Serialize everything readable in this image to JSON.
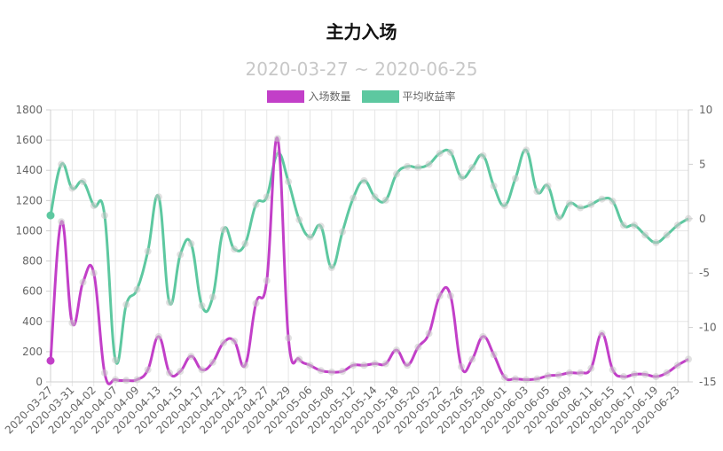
{
  "chart_data": {
    "type": "line",
    "title": "主力入场",
    "subtitle": "2020-03-27 ~ 2020-06-25",
    "x_tick_labels": [
      "2020-03-27",
      "2020-03-31",
      "2020-04-02",
      "2020-04-07",
      "2020-04-09",
      "2020-04-13",
      "2020-04-15",
      "2020-04-17",
      "2020-04-21",
      "2020-04-23",
      "2020-04-27",
      "2020-04-29",
      "2020-05-06",
      "2020-05-08",
      "2020-05-12",
      "2020-05-14",
      "2020-05-18",
      "2020-05-20",
      "2020-05-22",
      "2020-05-26",
      "2020-05-28",
      "2020-06-01",
      "2020-06-03",
      "2020-06-05",
      "2020-06-09",
      "2020-06-11",
      "2020-06-15",
      "2020-06-17",
      "2020-06-19",
      "2020-06-23"
    ],
    "n_points": 60,
    "y_left": {
      "ticks": [
        0,
        200,
        400,
        600,
        800,
        1000,
        1200,
        1400,
        1600,
        1800
      ],
      "min": 0,
      "max": 1800
    },
    "y_right": {
      "ticks": [
        -15,
        -10,
        -5,
        0,
        5,
        10
      ],
      "min": -15,
      "max": 10
    },
    "grid": true,
    "legend_position": "top-center",
    "series": [
      {
        "name": "入场数量",
        "color": "#C23FC8",
        "axis": "left",
        "values": [
          140,
          1060,
          390,
          660,
          720,
          60,
          15,
          10,
          15,
          80,
          300,
          60,
          70,
          170,
          80,
          130,
          260,
          270,
          110,
          520,
          670,
          1610,
          290,
          150,
          110,
          75,
          65,
          70,
          110,
          110,
          120,
          120,
          210,
          110,
          230,
          320,
          570,
          570,
          100,
          150,
          300,
          180,
          30,
          20,
          15,
          20,
          40,
          45,
          60,
          60,
          90,
          320,
          80,
          35,
          50,
          50,
          35,
          60,
          110,
          150
        ]
      },
      {
        "name": "平均收益率",
        "color": "#5DC8A0",
        "axis": "right",
        "values": [
          0.3,
          5.0,
          2.8,
          3.4,
          1.2,
          0.3,
          -13.0,
          -7.9,
          -6.5,
          -3.0,
          2.0,
          -7.7,
          -3.3,
          -2.3,
          -8.0,
          -7.2,
          -1.0,
          -2.8,
          -2.3,
          1.3,
          2.0,
          6.0,
          3.4,
          -0.1,
          -1.7,
          -0.7,
          -4.5,
          -1.2,
          1.9,
          3.5,
          2.0,
          1.7,
          4.1,
          4.8,
          4.7,
          5.0,
          6.0,
          6.1,
          3.8,
          4.7,
          5.8,
          3.0,
          1.2,
          3.7,
          6.3,
          2.5,
          3.0,
          0.1,
          1.4,
          1.0,
          1.3,
          1.8,
          1.6,
          -0.6,
          -0.6,
          -1.5,
          -2.2,
          -1.5,
          -0.6,
          0.0
        ]
      }
    ]
  }
}
